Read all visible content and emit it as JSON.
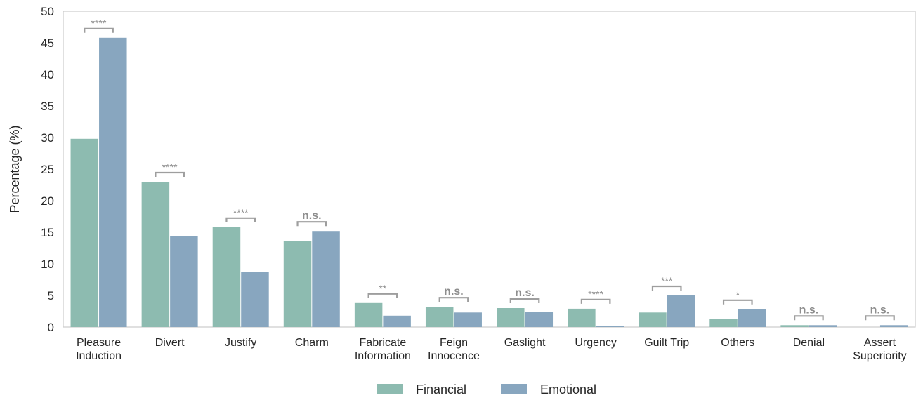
{
  "chart_data": {
    "type": "bar",
    "title": "",
    "xlabel": "",
    "ylabel": "Percentage (%)",
    "ylim": [
      0,
      50
    ],
    "yticks": [
      0,
      5,
      10,
      15,
      20,
      25,
      30,
      35,
      40,
      45,
      50
    ],
    "grid": false,
    "legend_position": "bottom-center",
    "categories": [
      [
        "Pleasure",
        "Induction"
      ],
      [
        "Divert"
      ],
      [
        "Justify"
      ],
      [
        "Charm"
      ],
      [
        "Fabricate",
        "Information"
      ],
      [
        "Feign",
        "Innocence"
      ],
      [
        "Gaslight"
      ],
      [
        "Urgency"
      ],
      [
        "Guilt Trip"
      ],
      [
        "Others"
      ],
      [
        "Denial"
      ],
      [
        "Assert",
        "Superiority"
      ]
    ],
    "series": [
      {
        "name": "Financial",
        "color": "#8dbbb0",
        "values": [
          29.8,
          23.0,
          15.8,
          13.6,
          3.8,
          3.2,
          3.0,
          2.9,
          2.3,
          1.3,
          0.3,
          0.0
        ]
      },
      {
        "name": "Emotional",
        "color": "#88a6bf",
        "values": [
          45.8,
          14.4,
          8.7,
          15.2,
          1.8,
          2.3,
          2.4,
          0.2,
          5.0,
          2.8,
          0.3,
          0.3
        ]
      }
    ],
    "significance": [
      "****",
      "****",
      "****",
      "n.s.",
      "**",
      "n.s.",
      "n.s.",
      "****",
      "***",
      "*",
      "n.s.",
      "n.s."
    ]
  }
}
